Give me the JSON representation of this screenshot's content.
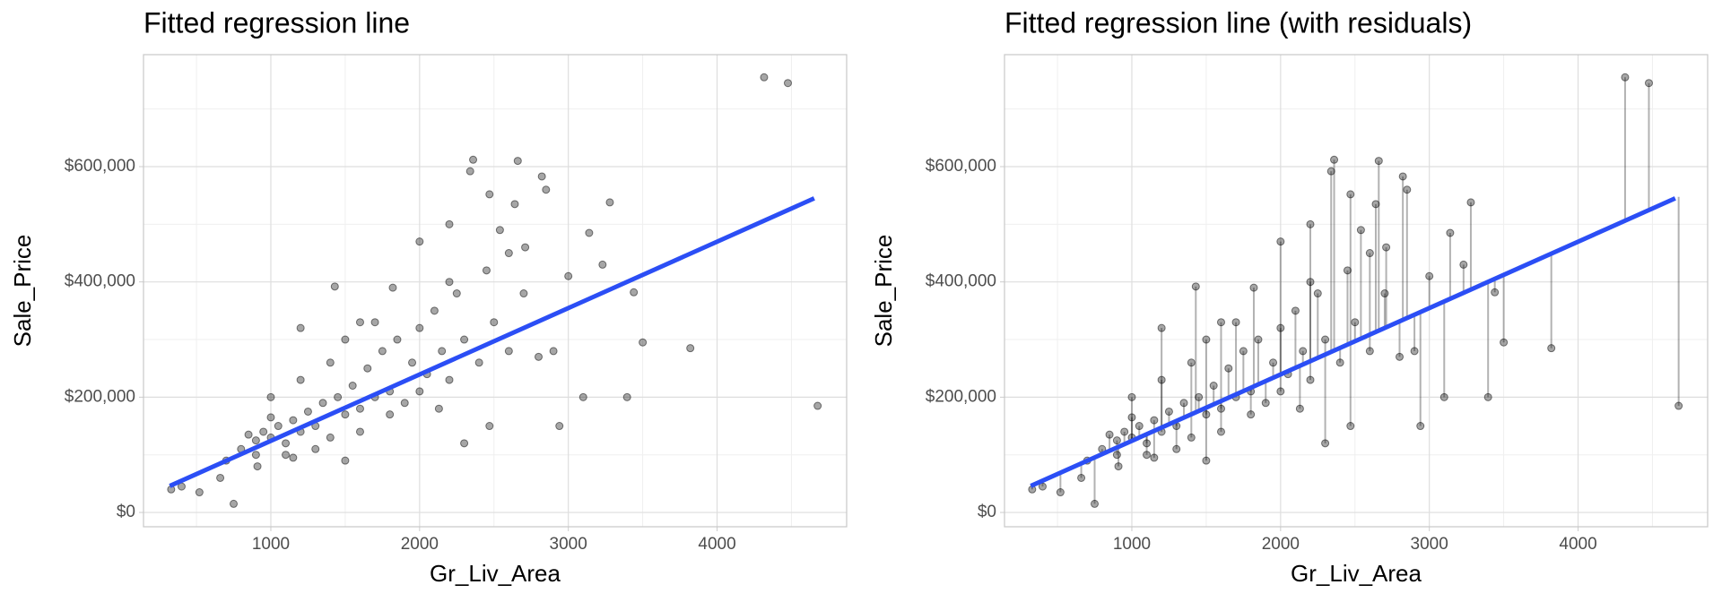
{
  "chart_data": [
    {
      "type": "scatter",
      "title": "Fitted regression line",
      "x_label": "Gr_Liv_Area",
      "y_label": "Sale_Price",
      "x": [
        4316,
        4476,
        4676,
        3820,
        3500,
        3395,
        3279,
        3140,
        3100,
        3000,
        2940,
        2822,
        2850,
        2660,
        2360,
        2340,
        2470,
        2640,
        2540,
        2200,
        2000,
        1430,
        3230,
        3440,
        2900,
        2710,
        2470,
        2300,
        2130,
        1820,
        1600,
        1200,
        1500,
        750,
        660,
        400,
        330,
        520,
        910,
        1000,
        800,
        850,
        900,
        950,
        1000,
        1050,
        1100,
        1150,
        1200,
        1250,
        1300,
        1350,
        1400,
        1450,
        1500,
        1550,
        1600,
        1650,
        1700,
        1750,
        1800,
        1850,
        1900,
        1950,
        2000,
        2050,
        2100,
        2150,
        2200,
        2250,
        2300,
        2400,
        2450,
        2500,
        2600,
        2700,
        2800,
        1100,
        1300,
        1600,
        1700,
        1800,
        900,
        1000,
        1200,
        1400,
        2000,
        2200,
        2600,
        1500,
        700,
        1150
      ],
      "y": [
        755000,
        745000,
        185000,
        285000,
        295000,
        200000,
        538000,
        485000,
        200000,
        410000,
        150000,
        583000,
        560000,
        610000,
        612000,
        592000,
        552000,
        535000,
        490000,
        500000,
        470000,
        392000,
        430000,
        382000,
        280000,
        460000,
        150000,
        120000,
        180000,
        390000,
        330000,
        320000,
        90000,
        15000,
        60000,
        45000,
        40000,
        35000,
        80000,
        200000,
        110000,
        135000,
        125000,
        140000,
        130000,
        150000,
        120000,
        160000,
        140000,
        175000,
        150000,
        190000,
        130000,
        200000,
        170000,
        220000,
        180000,
        250000,
        200000,
        280000,
        210000,
        300000,
        190000,
        260000,
        320000,
        240000,
        350000,
        280000,
        230000,
        380000,
        300000,
        260000,
        420000,
        330000,
        280000,
        380000,
        270000,
        100000,
        110000,
        140000,
        330000,
        170000,
        100000,
        165000,
        230000,
        260000,
        210000,
        400000,
        450000,
        300000,
        90000,
        95000
      ],
      "point_color": "#000000",
      "point_opacity": 0.35,
      "fit": {
        "x": [
          321,
          4653
        ],
        "y": [
          46000,
          545000
        ],
        "color": "#2b4ef5"
      },
      "residuals": false,
      "xlim": [
        144,
        4871
      ],
      "ylim": [
        -24800,
        794300
      ],
      "xticks": [
        1000,
        2000,
        3000,
        4000
      ],
      "yticks": [
        {
          "value": 0,
          "label": "$0"
        },
        {
          "value": 200000,
          "label": "$200,000"
        },
        {
          "value": 400000,
          "label": "$400,000"
        },
        {
          "value": 600000,
          "label": "$600,000"
        }
      ],
      "xminor": [
        500,
        1500,
        2500,
        3500,
        4500
      ],
      "yminor": [
        100000,
        300000,
        500000,
        700000
      ],
      "grid": true
    },
    {
      "type": "scatter",
      "title": "Fitted regression line (with residuals)",
      "x_label": "Gr_Liv_Area",
      "y_label": "Sale_Price",
      "x": [
        4316,
        4476,
        4676,
        3820,
        3500,
        3395,
        3279,
        3140,
        3100,
        3000,
        2940,
        2822,
        2850,
        2660,
        2360,
        2340,
        2470,
        2640,
        2540,
        2200,
        2000,
        1430,
        3230,
        3440,
        2900,
        2710,
        2470,
        2300,
        2130,
        1820,
        1600,
        1200,
        1500,
        750,
        660,
        400,
        330,
        520,
        910,
        1000,
        800,
        850,
        900,
        950,
        1000,
        1050,
        1100,
        1150,
        1200,
        1250,
        1300,
        1350,
        1400,
        1450,
        1500,
        1550,
        1600,
        1650,
        1700,
        1750,
        1800,
        1850,
        1900,
        1950,
        2000,
        2050,
        2100,
        2150,
        2200,
        2250,
        2300,
        2400,
        2450,
        2500,
        2600,
        2700,
        2800,
        1100,
        1300,
        1600,
        1700,
        1800,
        900,
        1000,
        1200,
        1400,
        2000,
        2200,
        2600,
        1500,
        700,
        1150
      ],
      "y": [
        755000,
        745000,
        185000,
        285000,
        295000,
        200000,
        538000,
        485000,
        200000,
        410000,
        150000,
        583000,
        560000,
        610000,
        612000,
        592000,
        552000,
        535000,
        490000,
        500000,
        470000,
        392000,
        430000,
        382000,
        280000,
        460000,
        150000,
        120000,
        180000,
        390000,
        330000,
        320000,
        90000,
        15000,
        60000,
        45000,
        40000,
        35000,
        80000,
        200000,
        110000,
        135000,
        125000,
        140000,
        130000,
        150000,
        120000,
        160000,
        140000,
        175000,
        150000,
        190000,
        130000,
        200000,
        170000,
        220000,
        180000,
        250000,
        200000,
        280000,
        210000,
        300000,
        190000,
        260000,
        320000,
        240000,
        350000,
        280000,
        230000,
        380000,
        300000,
        260000,
        420000,
        330000,
        280000,
        380000,
        270000,
        100000,
        110000,
        140000,
        330000,
        170000,
        100000,
        165000,
        230000,
        260000,
        210000,
        400000,
        450000,
        300000,
        90000,
        95000
      ],
      "point_color": "#000000",
      "point_opacity": 0.35,
      "fit": {
        "x": [
          321,
          4653
        ],
        "y": [
          46000,
          545000
        ],
        "color": "#2b4ef5"
      },
      "residuals": true,
      "xlim": [
        144,
        4871
      ],
      "ylim": [
        -24800,
        794300
      ],
      "xticks": [
        1000,
        2000,
        3000,
        4000
      ],
      "yticks": [
        {
          "value": 0,
          "label": "$0"
        },
        {
          "value": 200000,
          "label": "$200,000"
        },
        {
          "value": 400000,
          "label": "$400,000"
        },
        {
          "value": 600000,
          "label": "$600,000"
        }
      ],
      "xminor": [
        500,
        1500,
        2500,
        3500,
        4500
      ],
      "yminor": [
        100000,
        300000,
        500000,
        700000
      ],
      "grid": true
    }
  ]
}
